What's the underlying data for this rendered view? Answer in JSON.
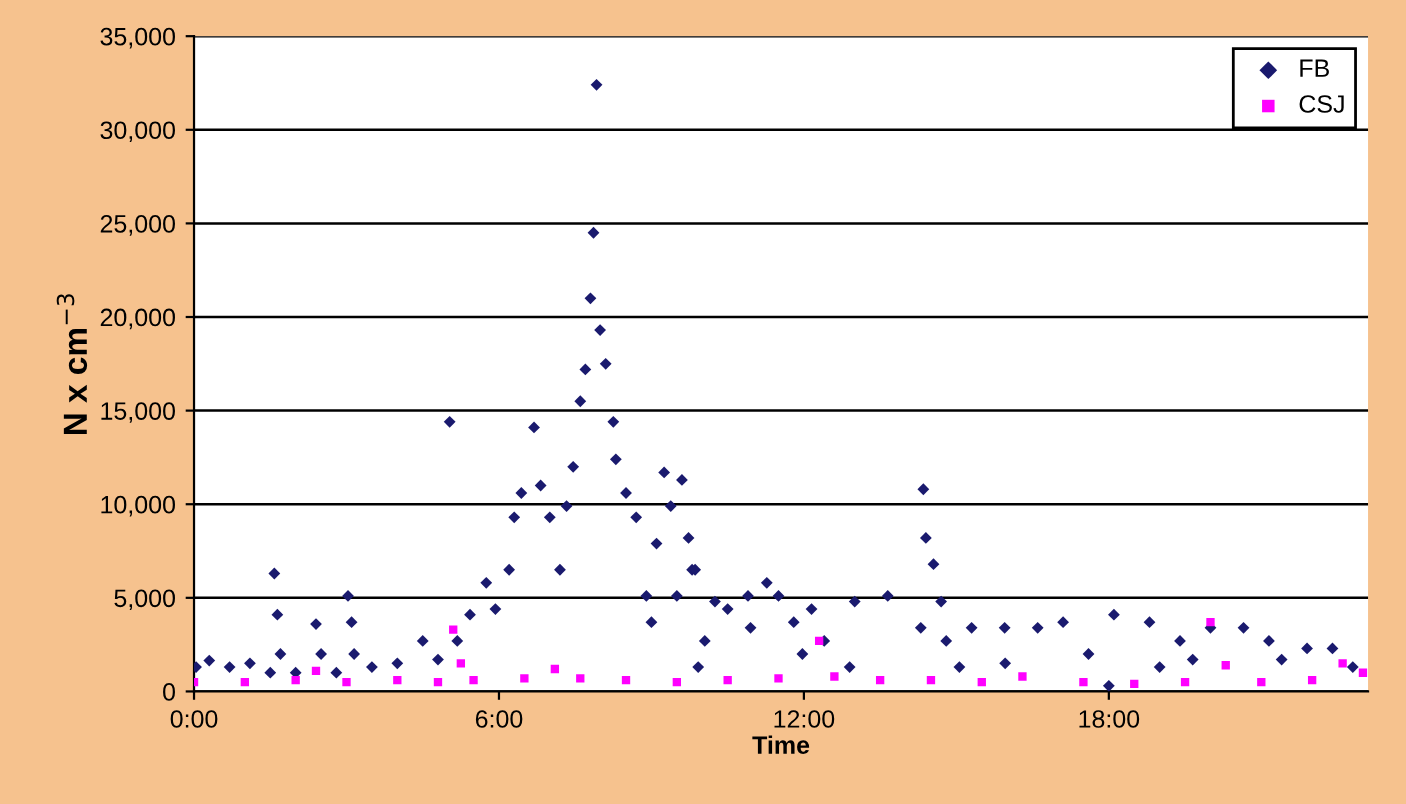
{
  "chart_data": {
    "type": "scatter",
    "xlabel": "Time",
    "ylabel": "N x cm$^{−3}$",
    "xlim": [
      0,
      23.1
    ],
    "xticks": [
      {
        "value": 0,
        "label": "0:00"
      },
      {
        "value": 6,
        "label": "6:00"
      },
      {
        "value": 12,
        "label": "12:00"
      },
      {
        "value": 18,
        "label": "18:00"
      }
    ],
    "ylim": [
      0,
      35000
    ],
    "yticks": [
      {
        "value": 0,
        "label": "0"
      },
      {
        "value": 5000,
        "label": "5,000"
      },
      {
        "value": 10000,
        "label": "10,000"
      },
      {
        "value": 15000,
        "label": "15,000"
      },
      {
        "value": 20000,
        "label": "20,000"
      },
      {
        "value": 25000,
        "label": "25,000"
      },
      {
        "value": 30000,
        "label": "30,000"
      },
      {
        "value": 35000,
        "label": "35,000"
      }
    ],
    "grid": "y",
    "legend": "top right",
    "series": [
      {
        "name": "FB",
        "color": "#1a1a6e",
        "marker": "diamond",
        "x": [
          0.04,
          0.3,
          0.7,
          1.1,
          1.5,
          1.58,
          1.64,
          1.7,
          2.0,
          2.4,
          2.5,
          2.8,
          3.03,
          3.1,
          3.15,
          3.5,
          4.0,
          4.5,
          4.8,
          5.03,
          5.18,
          5.43,
          5.75,
          5.93,
          6.2,
          6.3,
          6.44,
          6.69,
          6.82,
          7.0,
          7.2,
          7.33,
          7.46,
          7.6,
          7.7,
          7.8,
          7.86,
          7.92,
          7.99,
          8.1,
          8.25,
          8.3,
          8.5,
          8.7,
          8.9,
          9.0,
          9.1,
          9.25,
          9.38,
          9.5,
          9.6,
          9.73,
          9.8,
          9.86,
          9.92,
          10.05,
          10.25,
          10.5,
          10.9,
          10.95,
          11.27,
          11.5,
          11.8,
          11.97,
          12.15,
          12.4,
          12.9,
          13.0,
          13.65,
          14.3,
          14.35,
          14.4,
          14.55,
          14.7,
          14.8,
          15.06,
          15.3,
          15.95,
          15.96,
          16.6,
          17.1,
          17.6,
          18.0,
          18.1,
          18.8,
          19.0,
          19.4,
          19.65,
          20.0,
          20.65,
          21.15,
          21.4,
          21.9,
          22.4,
          22.8
        ],
        "values": [
          1300,
          1650,
          1300,
          1500,
          1000,
          6300,
          4100,
          2000,
          1000,
          3600,
          2000,
          1000,
          5100,
          3700,
          2000,
          1300,
          1500,
          2700,
          1700,
          14400,
          2700,
          4100,
          5800,
          4400,
          6500,
          9300,
          10600,
          14100,
          11000,
          9300,
          6500,
          9900,
          12000,
          15500,
          17200,
          21000,
          24500,
          32400,
          19300,
          17500,
          14400,
          12400,
          10600,
          9300,
          5100,
          3700,
          7900,
          11700,
          9900,
          5100,
          11300,
          8200,
          6500,
          6500,
          1300,
          2700,
          4800,
          4400,
          5100,
          3400,
          5800,
          5100,
          3700,
          2000,
          4400,
          2700,
          1300,
          4800,
          5100,
          3400,
          10800,
          8200,
          6800,
          4800,
          2700,
          1300,
          3400,
          3400,
          1500,
          3400,
          3700,
          2000,
          300,
          4100,
          3700,
          1300,
          2700,
          1700,
          3400,
          3400,
          2700,
          1700,
          2300,
          2300,
          1300
        ]
      },
      {
        "name": "CSJ",
        "color": "#ff00ff",
        "marker": "square",
        "x": [
          0,
          1,
          2,
          2.4,
          3,
          4,
          4.8,
          5.1,
          5.25,
          5.5,
          6.5,
          7.1,
          7.6,
          8.5,
          9.5,
          10.5,
          11.5,
          12.3,
          12.6,
          13.5,
          14.5,
          15.5,
          16.3,
          17.5,
          18.5,
          19.5,
          20.0,
          20.3,
          21,
          22,
          22.6,
          23
        ],
        "values": [
          500,
          500,
          600,
          1100,
          500,
          600,
          500,
          3300,
          1500,
          600,
          700,
          1200,
          700,
          600,
          500,
          600,
          700,
          2700,
          800,
          600,
          600,
          500,
          800,
          500,
          400,
          500,
          3700,
          1400,
          500,
          600,
          1500,
          1000
        ]
      }
    ]
  }
}
